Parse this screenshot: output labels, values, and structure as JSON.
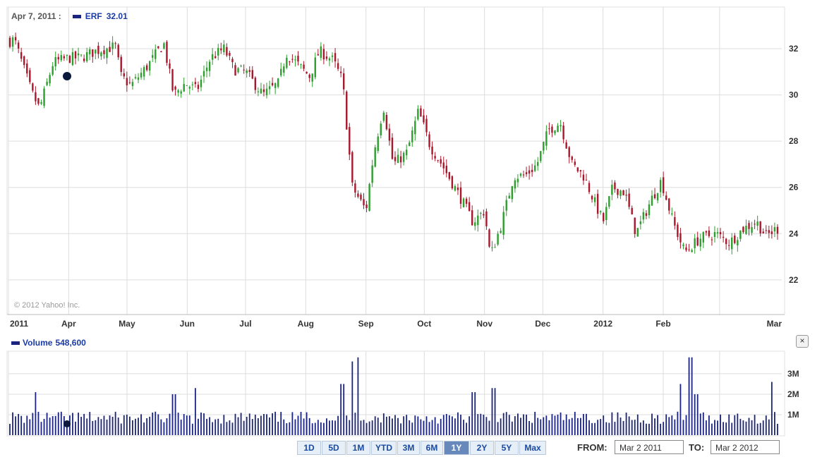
{
  "header": {
    "date": "Apr 7, 2011 :",
    "symbol": "ERF",
    "price": "32.01"
  },
  "volume_header": {
    "label": "Volume",
    "value": "548,600"
  },
  "copyright": "© 2012 Yahoo! Inc.",
  "close_glyph": "×",
  "range_buttons": [
    {
      "label": "1D"
    },
    {
      "label": "5D"
    },
    {
      "label": "1M"
    },
    {
      "label": "YTD"
    },
    {
      "label": "3M"
    },
    {
      "label": "6M"
    },
    {
      "label": "1Y",
      "active": true
    },
    {
      "label": "2Y"
    },
    {
      "label": "5Y"
    },
    {
      "label": "Max"
    }
  ],
  "from_label": "FROM:",
  "from_value": "Mar 2 2011",
  "to_label": "TO:",
  "to_value": "Mar 2 2012",
  "colors": {
    "up": "#2e9e2e",
    "down": "#a8182c",
    "volume": "#1a237e",
    "grid": "#dddddd",
    "marker": "#0b1a3c"
  },
  "chart_data": [
    {
      "type": "candlestick",
      "series": [
        {
          "name": "ERF"
        }
      ],
      "x_tick_labels": [
        "2011",
        "Apr",
        "May",
        "Jun",
        "Jul",
        "Aug",
        "Sep",
        "Oct",
        "Nov",
        "Dec",
        "2012",
        "Feb",
        "Mar"
      ],
      "x_range": [
        "Mar 2 2011",
        "Mar 2 2012"
      ],
      "y_ticks": [
        22,
        24,
        26,
        28,
        30,
        32
      ],
      "ylim": [
        20.5,
        33.8
      ],
      "grid": true,
      "highlight": {
        "date": "Apr 7, 2011",
        "value": 32.01
      },
      "key_points": [
        [
          "2011-03-01",
          32.3
        ],
        [
          "2011-03-04",
          32.4
        ],
        [
          "2011-03-09",
          31.1
        ],
        [
          "2011-03-13",
          30.1
        ],
        [
          "2011-03-17",
          29.4
        ],
        [
          "2011-03-24",
          31.4
        ],
        [
          "2011-04-01",
          31.6
        ],
        [
          "2011-04-07",
          31.6
        ],
        [
          "2011-04-15",
          31.9
        ],
        [
          "2011-04-25",
          32.1
        ],
        [
          "2011-04-28",
          30.8
        ],
        [
          "2011-05-03",
          30.4
        ],
        [
          "2011-05-12",
          31.3
        ],
        [
          "2011-05-17",
          31.9
        ],
        [
          "2011-05-20",
          32.2
        ],
        [
          "2011-05-25",
          30.0
        ],
        [
          "2011-05-31",
          30.5
        ],
        [
          "2011-06-06",
          30.2
        ],
        [
          "2011-06-13",
          31.6
        ],
        [
          "2011-06-20",
          32.0
        ],
        [
          "2011-06-25",
          31.1
        ],
        [
          "2011-07-01",
          31.0
        ],
        [
          "2011-07-10",
          30.0
        ],
        [
          "2011-07-18",
          30.5
        ],
        [
          "2011-07-22",
          31.8
        ],
        [
          "2011-07-27",
          31.4
        ],
        [
          "2011-08-03",
          30.8
        ],
        [
          "2011-08-08",
          31.9
        ],
        [
          "2011-08-15",
          31.5
        ],
        [
          "2011-08-20",
          30.6
        ],
        [
          "2011-08-25",
          26.0
        ],
        [
          "2011-09-01",
          25.0
        ],
        [
          "2011-09-05",
          27.5
        ],
        [
          "2011-09-10",
          29.5
        ],
        [
          "2011-09-15",
          27.0
        ],
        [
          "2011-09-22",
          27.5
        ],
        [
          "2011-09-28",
          29.3
        ],
        [
          "2011-10-04",
          27.8
        ],
        [
          "2011-10-10",
          27.0
        ],
        [
          "2011-10-20",
          25.5
        ],
        [
          "2011-10-26",
          24.5
        ],
        [
          "2011-11-01",
          25.0
        ],
        [
          "2011-11-04",
          23.0
        ],
        [
          "2011-11-10",
          24.5
        ],
        [
          "2011-11-16",
          26.5
        ],
        [
          "2011-11-22",
          26.5
        ],
        [
          "2011-11-28",
          27.0
        ],
        [
          "2011-12-04",
          28.5
        ],
        [
          "2011-12-10",
          28.8
        ],
        [
          "2011-12-16",
          27.0
        ],
        [
          "2011-12-22",
          26.5
        ],
        [
          "2012-01-01",
          24.5
        ],
        [
          "2012-01-06",
          26.0
        ],
        [
          "2012-01-12",
          25.8
        ],
        [
          "2012-01-18",
          24.0
        ],
        [
          "2012-01-26",
          25.5
        ],
        [
          "2012-01-31",
          26.3
        ],
        [
          "2012-02-06",
          24.5
        ],
        [
          "2012-02-12",
          23.2
        ],
        [
          "2012-02-20",
          23.8
        ],
        [
          "2012-02-28",
          24.0
        ],
        [
          "2012-03-06",
          23.6
        ],
        [
          "2012-03-13",
          24.2
        ],
        [
          "2012-03-20",
          24.5
        ],
        [
          "2012-03-25",
          23.9
        ],
        [
          "2012-03-30",
          24.2
        ]
      ]
    },
    {
      "type": "bar",
      "series": [
        {
          "name": "Volume"
        }
      ],
      "y_tick_labels": [
        "1M",
        "2M",
        "3M"
      ],
      "y_ticks": [
        1,
        2,
        3
      ],
      "ylim": [
        0,
        4.1
      ],
      "unit": "M shares",
      "highlight": {
        "date": "Apr 7, 2011",
        "value": 0.5486
      },
      "spikes": [
        [
          "2011-03-15",
          2.1
        ],
        [
          "2011-05-25",
          2.0
        ],
        [
          "2011-06-05",
          2.3
        ],
        [
          "2011-08-20",
          2.5
        ],
        [
          "2011-08-25",
          3.6
        ],
        [
          "2011-08-28",
          3.8
        ],
        [
          "2011-10-26",
          2.1
        ],
        [
          "2011-11-06",
          2.3
        ],
        [
          "2012-02-10",
          2.5
        ],
        [
          "2012-02-15",
          3.8
        ],
        [
          "2012-02-18",
          2.0
        ],
        [
          "2012-03-28",
          2.6
        ]
      ]
    }
  ]
}
